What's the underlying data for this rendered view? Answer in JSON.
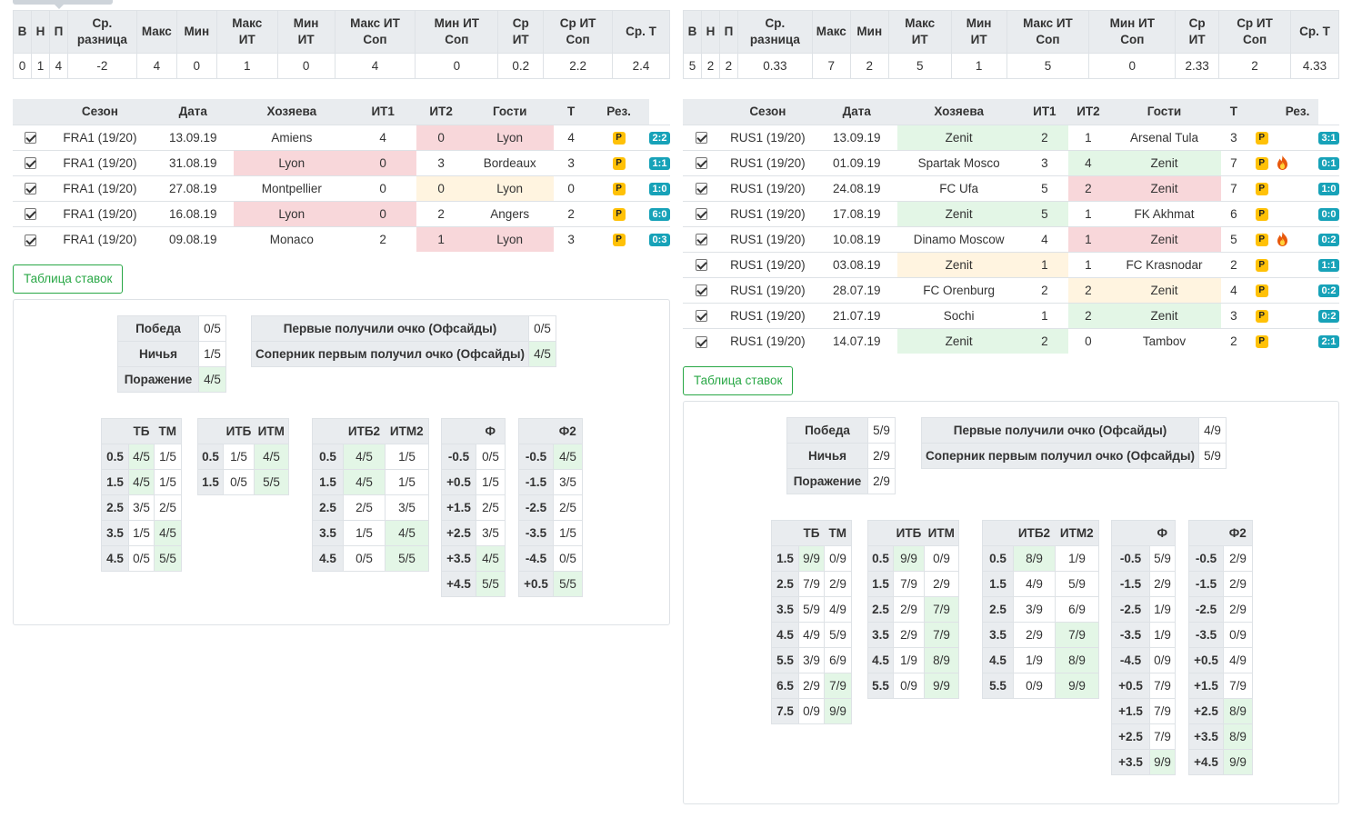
{
  "left": {
    "stats_headers": [
      "В",
      "Н",
      "П",
      "Ср.\nразница",
      "Макс",
      "Мин",
      "Макс\nИТ",
      "Мин\nИТ",
      "Макс ИТ\nСоп",
      "Мин ИТ\nСоп",
      "Ср\nИТ",
      "Ср ИТ\nСоп",
      "Ср. Т"
    ],
    "stats_values": [
      "0",
      "1",
      "4",
      "-2",
      "4",
      "0",
      "1",
      "0",
      "4",
      "0",
      "0.2",
      "2.2",
      "2.4"
    ],
    "match_headers": [
      "Сезон",
      "Дата",
      "Хозяева",
      "ИТ1",
      "ИТ2",
      "Гости",
      "Т",
      "Рез."
    ],
    "matches": [
      {
        "season": "FRA1 (19/20)",
        "date": "13.09.19",
        "home": "Amiens",
        "it1": "4",
        "it2": "0",
        "away": "Lyon",
        "t": "4",
        "p": "P",
        "res": "2:2",
        "hl": {
          "home": "",
          "it1": "",
          "it2": "red",
          "away": "red"
        },
        "fire": false
      },
      {
        "season": "FRA1 (19/20)",
        "date": "31.08.19",
        "home": "Lyon",
        "it1": "0",
        "it2": "3",
        "away": "Bordeaux",
        "t": "3",
        "p": "P",
        "res": "1:1",
        "hl": {
          "home": "red",
          "it1": "red",
          "it2": "",
          "away": ""
        },
        "fire": false
      },
      {
        "season": "FRA1 (19/20)",
        "date": "27.08.19",
        "home": "Montpellier",
        "it1": "0",
        "it2": "0",
        "away": "Lyon",
        "t": "0",
        "p": "P",
        "res": "1:0",
        "hl": {
          "home": "",
          "it1": "",
          "it2": "yellow",
          "away": "yellow"
        },
        "fire": false
      },
      {
        "season": "FRA1 (19/20)",
        "date": "16.08.19",
        "home": "Lyon",
        "it1": "0",
        "it2": "2",
        "away": "Angers",
        "t": "2",
        "p": "P",
        "res": "6:0",
        "hl": {
          "home": "red",
          "it1": "red",
          "it2": "",
          "away": ""
        },
        "fire": false
      },
      {
        "season": "FRA1 (19/20)",
        "date": "09.08.19",
        "home": "Monaco",
        "it1": "2",
        "it2": "1",
        "away": "Lyon",
        "t": "3",
        "p": "P",
        "res": "0:3",
        "hl": {
          "home": "",
          "it1": "",
          "it2": "red",
          "away": "red"
        },
        "fire": false
      }
    ],
    "bets_button": "Таблица ставок",
    "wdl": [
      {
        "label": "Победа",
        "value": "0/5",
        "g": false
      },
      {
        "label": "Ничья",
        "value": "1/5",
        "g": false
      },
      {
        "label": "Поражение",
        "value": "4/5",
        "g": true
      }
    ],
    "offside": [
      {
        "label": "Первые получили очко (Офсайды)",
        "value": "0/5",
        "g": false
      },
      {
        "label": "Соперник первым получил очко (Офсайды)",
        "value": "4/5",
        "g": true
      }
    ],
    "mini_tables": [
      {
        "id": "tb",
        "headers": [
          "",
          "ТБ",
          "ТМ"
        ],
        "rows": [
          {
            "k": "0.5",
            "a": "4/5",
            "b": "1/5",
            "ga": true,
            "gb": false
          },
          {
            "k": "1.5",
            "a": "4/5",
            "b": "1/5",
            "ga": true,
            "gb": false
          },
          {
            "k": "2.5",
            "a": "3/5",
            "b": "2/5",
            "ga": false,
            "gb": false
          },
          {
            "k": "3.5",
            "a": "1/5",
            "b": "4/5",
            "ga": false,
            "gb": true
          },
          {
            "k": "4.5",
            "a": "0/5",
            "b": "5/5",
            "ga": false,
            "gb": true
          }
        ]
      },
      {
        "id": "itb",
        "headers": [
          "",
          "ИТБ",
          "ИТМ"
        ],
        "rows": [
          {
            "k": "0.5",
            "a": "1/5",
            "b": "4/5",
            "ga": false,
            "gb": true
          },
          {
            "k": "1.5",
            "a": "0/5",
            "b": "5/5",
            "ga": false,
            "gb": true
          }
        ]
      },
      {
        "id": "itb2",
        "headers": [
          "",
          "ИТБ2",
          "ИТМ2"
        ],
        "rows": [
          {
            "k": "0.5",
            "a": "4/5",
            "b": "1/5",
            "ga": true,
            "gb": false
          },
          {
            "k": "1.5",
            "a": "4/5",
            "b": "1/5",
            "ga": true,
            "gb": false
          },
          {
            "k": "2.5",
            "a": "2/5",
            "b": "3/5",
            "ga": false,
            "gb": false
          },
          {
            "k": "3.5",
            "a": "1/5",
            "b": "4/5",
            "ga": false,
            "gb": true
          },
          {
            "k": "4.5",
            "a": "0/5",
            "b": "5/5",
            "ga": false,
            "gb": true
          }
        ]
      },
      {
        "id": "f",
        "headers": [
          "",
          "Ф"
        ],
        "rows": [
          {
            "k": "-0.5",
            "a": "0/5",
            "ga": false
          },
          {
            "k": "+0.5",
            "a": "1/5",
            "ga": false
          },
          {
            "k": "+1.5",
            "a": "2/5",
            "ga": false
          },
          {
            "k": "+2.5",
            "a": "3/5",
            "ga": false
          },
          {
            "k": "+3.5",
            "a": "4/5",
            "ga": true
          },
          {
            "k": "+4.5",
            "a": "5/5",
            "ga": true
          }
        ]
      },
      {
        "id": "f2",
        "headers": [
          "",
          "Ф2"
        ],
        "rows": [
          {
            "k": "-0.5",
            "a": "4/5",
            "ga": true
          },
          {
            "k": "-1.5",
            "a": "3/5",
            "ga": false
          },
          {
            "k": "-2.5",
            "a": "2/5",
            "ga": false
          },
          {
            "k": "-3.5",
            "a": "1/5",
            "ga": false
          },
          {
            "k": "-4.5",
            "a": "0/5",
            "ga": false
          },
          {
            "k": "+0.5",
            "a": "5/5",
            "ga": true
          }
        ]
      }
    ]
  },
  "right": {
    "stats_headers": [
      "В",
      "Н",
      "П",
      "Ср.\nразница",
      "Макс",
      "Мин",
      "Макс\nИТ",
      "Мин\nИТ",
      "Макс ИТ\nСоп",
      "Мин ИТ\nСоп",
      "Ср\nИТ",
      "Ср ИТ\nСоп",
      "Ср. Т"
    ],
    "stats_values": [
      "5",
      "2",
      "2",
      "0.33",
      "7",
      "2",
      "5",
      "1",
      "5",
      "0",
      "2.33",
      "2",
      "4.33"
    ],
    "match_headers": [
      "Сезон",
      "Дата",
      "Хозяева",
      "ИТ1",
      "ИТ2",
      "Гости",
      "Т",
      "Рез."
    ],
    "matches": [
      {
        "season": "RUS1 (19/20)",
        "date": "13.09.19",
        "home": "Zenit",
        "it1": "2",
        "it2": "1",
        "away": "Arsenal Tula",
        "t": "3",
        "p": "P",
        "res": "3:1",
        "hl": {
          "home": "green",
          "it1": "green",
          "it2": "",
          "away": ""
        },
        "fire": false
      },
      {
        "season": "RUS1 (19/20)",
        "date": "01.09.19",
        "home": "Spartak Mosco",
        "it1": "3",
        "it2": "4",
        "away": "Zenit",
        "t": "7",
        "p": "P",
        "res": "0:1",
        "hl": {
          "home": "",
          "it1": "",
          "it2": "green",
          "away": "green"
        },
        "fire": true
      },
      {
        "season": "RUS1 (19/20)",
        "date": "24.08.19",
        "home": "FC Ufa",
        "it1": "5",
        "it2": "2",
        "away": "Zenit",
        "t": "7",
        "p": "P",
        "res": "1:0",
        "hl": {
          "home": "",
          "it1": "",
          "it2": "red",
          "away": "red"
        },
        "fire": false
      },
      {
        "season": "RUS1 (19/20)",
        "date": "17.08.19",
        "home": "Zenit",
        "it1": "5",
        "it2": "1",
        "away": "FK Akhmat",
        "t": "6",
        "p": "P",
        "res": "0:0",
        "hl": {
          "home": "green",
          "it1": "green",
          "it2": "",
          "away": ""
        },
        "fire": false
      },
      {
        "season": "RUS1 (19/20)",
        "date": "10.08.19",
        "home": "Dinamo Moscow",
        "it1": "4",
        "it2": "1",
        "away": "Zenit",
        "t": "5",
        "p": "P",
        "res": "0:2",
        "hl": {
          "home": "",
          "it1": "",
          "it2": "red",
          "away": "red"
        },
        "fire": true
      },
      {
        "season": "RUS1 (19/20)",
        "date": "03.08.19",
        "home": "Zenit",
        "it1": "1",
        "it2": "1",
        "away": "FC Krasnodar",
        "t": "2",
        "p": "P",
        "res": "1:1",
        "hl": {
          "home": "yellow",
          "it1": "yellow",
          "it2": "",
          "away": ""
        },
        "fire": false
      },
      {
        "season": "RUS1 (19/20)",
        "date": "28.07.19",
        "home": "FC Orenburg",
        "it1": "2",
        "it2": "2",
        "away": "Zenit",
        "t": "4",
        "p": "P",
        "res": "0:2",
        "hl": {
          "home": "",
          "it1": "",
          "it2": "yellow",
          "away": "yellow"
        },
        "fire": false
      },
      {
        "season": "RUS1 (19/20)",
        "date": "21.07.19",
        "home": "Sochi",
        "it1": "1",
        "it2": "2",
        "away": "Zenit",
        "t": "3",
        "p": "P",
        "res": "0:2",
        "hl": {
          "home": "",
          "it1": "",
          "it2": "green",
          "away": "green"
        },
        "fire": false
      },
      {
        "season": "RUS1 (19/20)",
        "date": "14.07.19",
        "home": "Zenit",
        "it1": "2",
        "it2": "0",
        "away": "Tambov",
        "t": "2",
        "p": "P",
        "res": "2:1",
        "hl": {
          "home": "green",
          "it1": "green",
          "it2": "",
          "away": ""
        },
        "fire": false
      }
    ],
    "bets_button": "Таблица ставок",
    "wdl": [
      {
        "label": "Победа",
        "value": "5/9",
        "g": false
      },
      {
        "label": "Ничья",
        "value": "2/9",
        "g": false
      },
      {
        "label": "Поражение",
        "value": "2/9",
        "g": false
      }
    ],
    "offside": [
      {
        "label": "Первые получили очко (Офсайды)",
        "value": "4/9",
        "g": false
      },
      {
        "label": "Соперник первым получил очко (Офсайды)",
        "value": "5/9",
        "g": false
      }
    ],
    "mini_tables": [
      {
        "id": "tb",
        "headers": [
          "",
          "ТБ",
          "ТМ"
        ],
        "rows": [
          {
            "k": "1.5",
            "a": "9/9",
            "b": "0/9",
            "ga": true,
            "gb": false
          },
          {
            "k": "2.5",
            "a": "7/9",
            "b": "2/9",
            "ga": false,
            "gb": false
          },
          {
            "k": "3.5",
            "a": "5/9",
            "b": "4/9",
            "ga": false,
            "gb": false
          },
          {
            "k": "4.5",
            "a": "4/9",
            "b": "5/9",
            "ga": false,
            "gb": false
          },
          {
            "k": "5.5",
            "a": "3/9",
            "b": "6/9",
            "ga": false,
            "gb": false
          },
          {
            "k": "6.5",
            "a": "2/9",
            "b": "7/9",
            "ga": false,
            "gb": true
          },
          {
            "k": "7.5",
            "a": "0/9",
            "b": "9/9",
            "ga": false,
            "gb": true
          }
        ]
      },
      {
        "id": "itb",
        "headers": [
          "",
          "ИТБ",
          "ИТМ"
        ],
        "rows": [
          {
            "k": "0.5",
            "a": "9/9",
            "b": "0/9",
            "ga": true,
            "gb": false
          },
          {
            "k": "1.5",
            "a": "7/9",
            "b": "2/9",
            "ga": false,
            "gb": false
          },
          {
            "k": "2.5",
            "a": "2/9",
            "b": "7/9",
            "ga": false,
            "gb": true
          },
          {
            "k": "3.5",
            "a": "2/9",
            "b": "7/9",
            "ga": false,
            "gb": true
          },
          {
            "k": "4.5",
            "a": "1/9",
            "b": "8/9",
            "ga": false,
            "gb": true
          },
          {
            "k": "5.5",
            "a": "0/9",
            "b": "9/9",
            "ga": false,
            "gb": true
          }
        ]
      },
      {
        "id": "itb2",
        "headers": [
          "",
          "ИТБ2",
          "ИТМ2"
        ],
        "rows": [
          {
            "k": "0.5",
            "a": "8/9",
            "b": "1/9",
            "ga": true,
            "gb": false
          },
          {
            "k": "1.5",
            "a": "4/9",
            "b": "5/9",
            "ga": false,
            "gb": false
          },
          {
            "k": "2.5",
            "a": "3/9",
            "b": "6/9",
            "ga": false,
            "gb": false
          },
          {
            "k": "3.5",
            "a": "2/9",
            "b": "7/9",
            "ga": false,
            "gb": true
          },
          {
            "k": "4.5",
            "a": "1/9",
            "b": "8/9",
            "ga": false,
            "gb": true
          },
          {
            "k": "5.5",
            "a": "0/9",
            "b": "9/9",
            "ga": false,
            "gb": true
          }
        ]
      },
      {
        "id": "f",
        "headers": [
          "",
          "Ф"
        ],
        "rows": [
          {
            "k": "-0.5",
            "a": "5/9",
            "ga": false
          },
          {
            "k": "-1.5",
            "a": "2/9",
            "ga": false
          },
          {
            "k": "-2.5",
            "a": "1/9",
            "ga": false
          },
          {
            "k": "-3.5",
            "a": "1/9",
            "ga": false
          },
          {
            "k": "-4.5",
            "a": "0/9",
            "ga": false
          },
          {
            "k": "+0.5",
            "a": "7/9",
            "ga": false
          },
          {
            "k": "+1.5",
            "a": "7/9",
            "ga": false
          },
          {
            "k": "+2.5",
            "a": "7/9",
            "ga": false
          },
          {
            "k": "+3.5",
            "a": "9/9",
            "ga": true
          }
        ]
      },
      {
        "id": "f2",
        "headers": [
          "",
          "Ф2"
        ],
        "rows": [
          {
            "k": "-0.5",
            "a": "2/9",
            "ga": false
          },
          {
            "k": "-1.5",
            "a": "2/9",
            "ga": false
          },
          {
            "k": "-2.5",
            "a": "2/9",
            "ga": false
          },
          {
            "k": "-3.5",
            "a": "0/9",
            "ga": false
          },
          {
            "k": "+0.5",
            "a": "4/9",
            "ga": false
          },
          {
            "k": "+1.5",
            "a": "7/9",
            "ga": false
          },
          {
            "k": "+2.5",
            "a": "8/9",
            "ga": true
          },
          {
            "k": "+3.5",
            "a": "8/9",
            "ga": true
          },
          {
            "k": "+4.5",
            "a": "9/9",
            "ga": true
          }
        ]
      }
    ]
  }
}
